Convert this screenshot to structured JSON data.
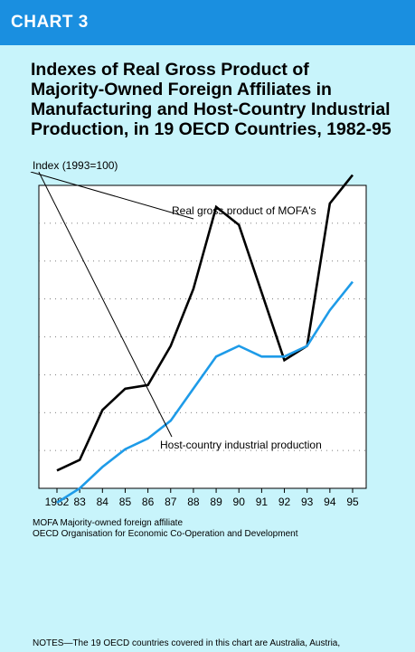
{
  "header": {
    "chart_label": "CHART 3",
    "colors": {
      "bar": "#1a8fe0",
      "background": "#c8f4fb"
    }
  },
  "title_lines": [
    "Indexes of Real Gross Product of",
    "Majority-Owned Foreign Affiliates in",
    "Manufacturing and Host-Country Industrial",
    "Production, in 19 OECD Countries, 1982-95"
  ],
  "chart_data": {
    "type": "line",
    "title": "Indexes of Real Gross Product of Majority-Owned Foreign Affiliates in Manufacturing and Host-Country Industrial Production, in 19 OECD Countries, 1982-95",
    "ylabel": "Index (1993=100)",
    "xlabel": "",
    "categories": [
      "1982",
      "83",
      "84",
      "85",
      "86",
      "87",
      "88",
      "89",
      "90",
      "91",
      "92",
      "93",
      "94",
      "95"
    ],
    "ylim": [
      60,
      140
    ],
    "grid": "horizontal dotted",
    "series": [
      {
        "name": "Real gross product of MOFA's",
        "color": "#000000",
        "values": [
          65,
          68,
          82,
          88,
          89,
          100,
          116,
          139,
          134,
          115,
          96,
          100,
          140,
          148
        ]
      },
      {
        "name": "Host-country industrial production",
        "color": "#1e9be8",
        "values": [
          56,
          60,
          66,
          71,
          74,
          79,
          88,
          97,
          100,
          97,
          97,
          100,
          110,
          118
        ]
      }
    ],
    "annotations": [
      {
        "text": "Real gross product of MOFA's",
        "points_to": "1989"
      },
      {
        "text": "Host-country industrial production",
        "points_to": "1986"
      }
    ]
  },
  "footnotes": [
    "MOFA Majority-owned foreign affiliate",
    "OECD Organisation for Economic Co-Operation and Development"
  ],
  "notes": "NOTES—The 19 OECD countries covered in this chart are Australia, Austria,"
}
